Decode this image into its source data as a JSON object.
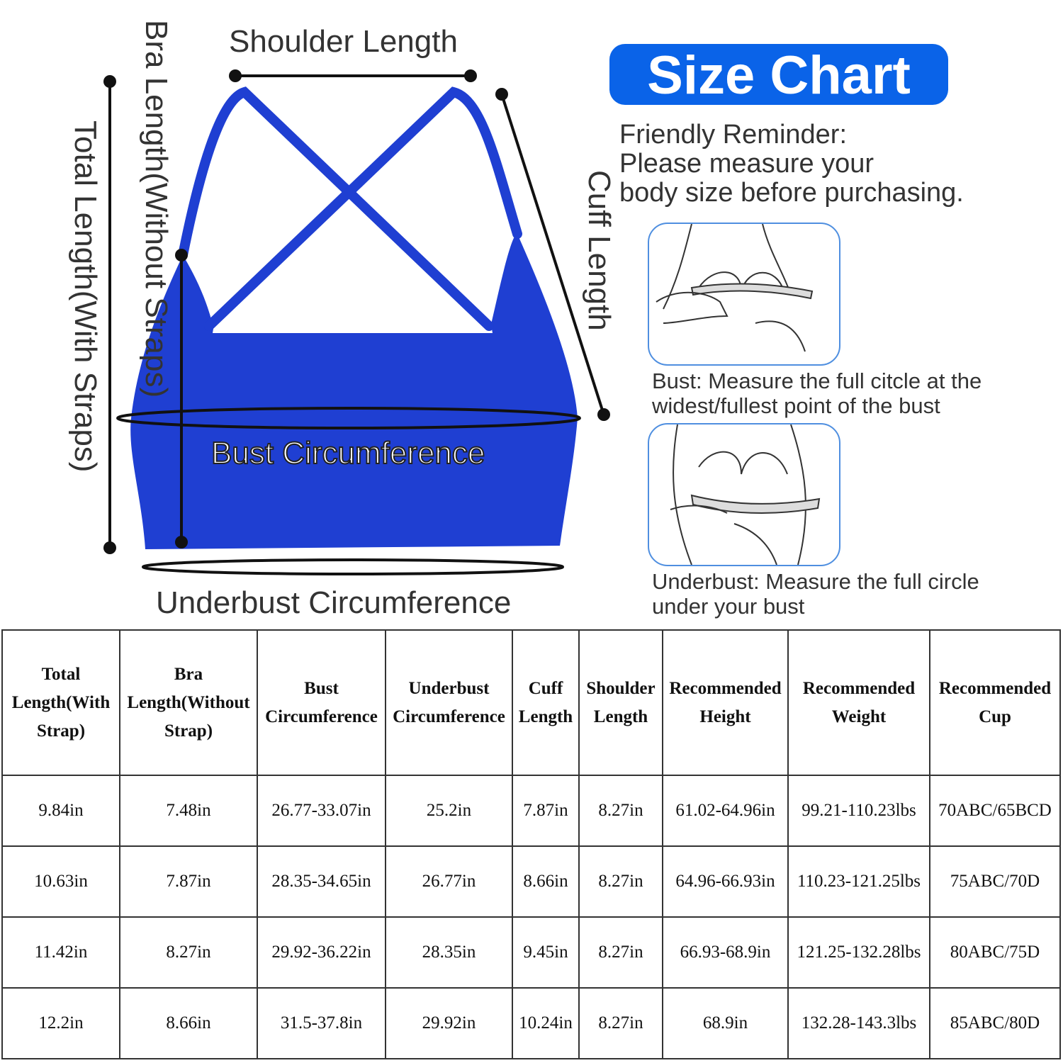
{
  "title": "Size Chart",
  "reminder": [
    "Friendly Reminder:",
    "Please measure your",
    "body size before purchasing."
  ],
  "diagram": {
    "shoulder_length": "Shoulder Length",
    "cuff_length": "Cuff Length",
    "total_length": "Total Length(With Straps)",
    "bra_length": "Bra Length(Without Straps)",
    "bust_circumference": "Bust Circumference",
    "underbust_circumference": "Underbust Circumference",
    "garment_color": "#1f3fd2"
  },
  "guides": [
    {
      "caption": [
        "Bust: Measure the full citcle at the",
        "widest/fullest point of the bust"
      ]
    },
    {
      "caption": [
        "Underbust: Measure the full circle",
        "under your bust"
      ]
    }
  ],
  "table": {
    "headers": [
      [
        "Total",
        "Length(With",
        "Strap)"
      ],
      [
        "Bra",
        "Length(Without",
        "Strap)"
      ],
      [
        "Bust",
        "Circumference"
      ],
      [
        "Underbust",
        "Circumference"
      ],
      [
        "Cuff",
        "Length"
      ],
      [
        "Shoulder",
        "Length"
      ],
      [
        "Recommended",
        "Height"
      ],
      [
        "Recommended",
        "Weight"
      ],
      [
        "Recommended",
        "Cup"
      ]
    ],
    "rows": [
      [
        "9.84in",
        "7.48in",
        "26.77-33.07in",
        "25.2in",
        "7.87in",
        "8.27in",
        "61.02-64.96in",
        "99.21-110.23lbs",
        "70ABC/65BCD"
      ],
      [
        "10.63in",
        "7.87in",
        "28.35-34.65in",
        "26.77in",
        "8.66in",
        "8.27in",
        "64.96-66.93in",
        "110.23-121.25lbs",
        "75ABC/70D"
      ],
      [
        "11.42in",
        "8.27in",
        "29.92-36.22in",
        "28.35in",
        "9.45in",
        "8.27in",
        "66.93-68.9in",
        "121.25-132.28lbs",
        "80ABC/75D"
      ],
      [
        "12.2in",
        "8.66in",
        "31.5-37.8in",
        "29.92in",
        "10.24in",
        "8.27in",
        "68.9in",
        "132.28-143.3lbs",
        "85ABC/80D"
      ]
    ]
  }
}
